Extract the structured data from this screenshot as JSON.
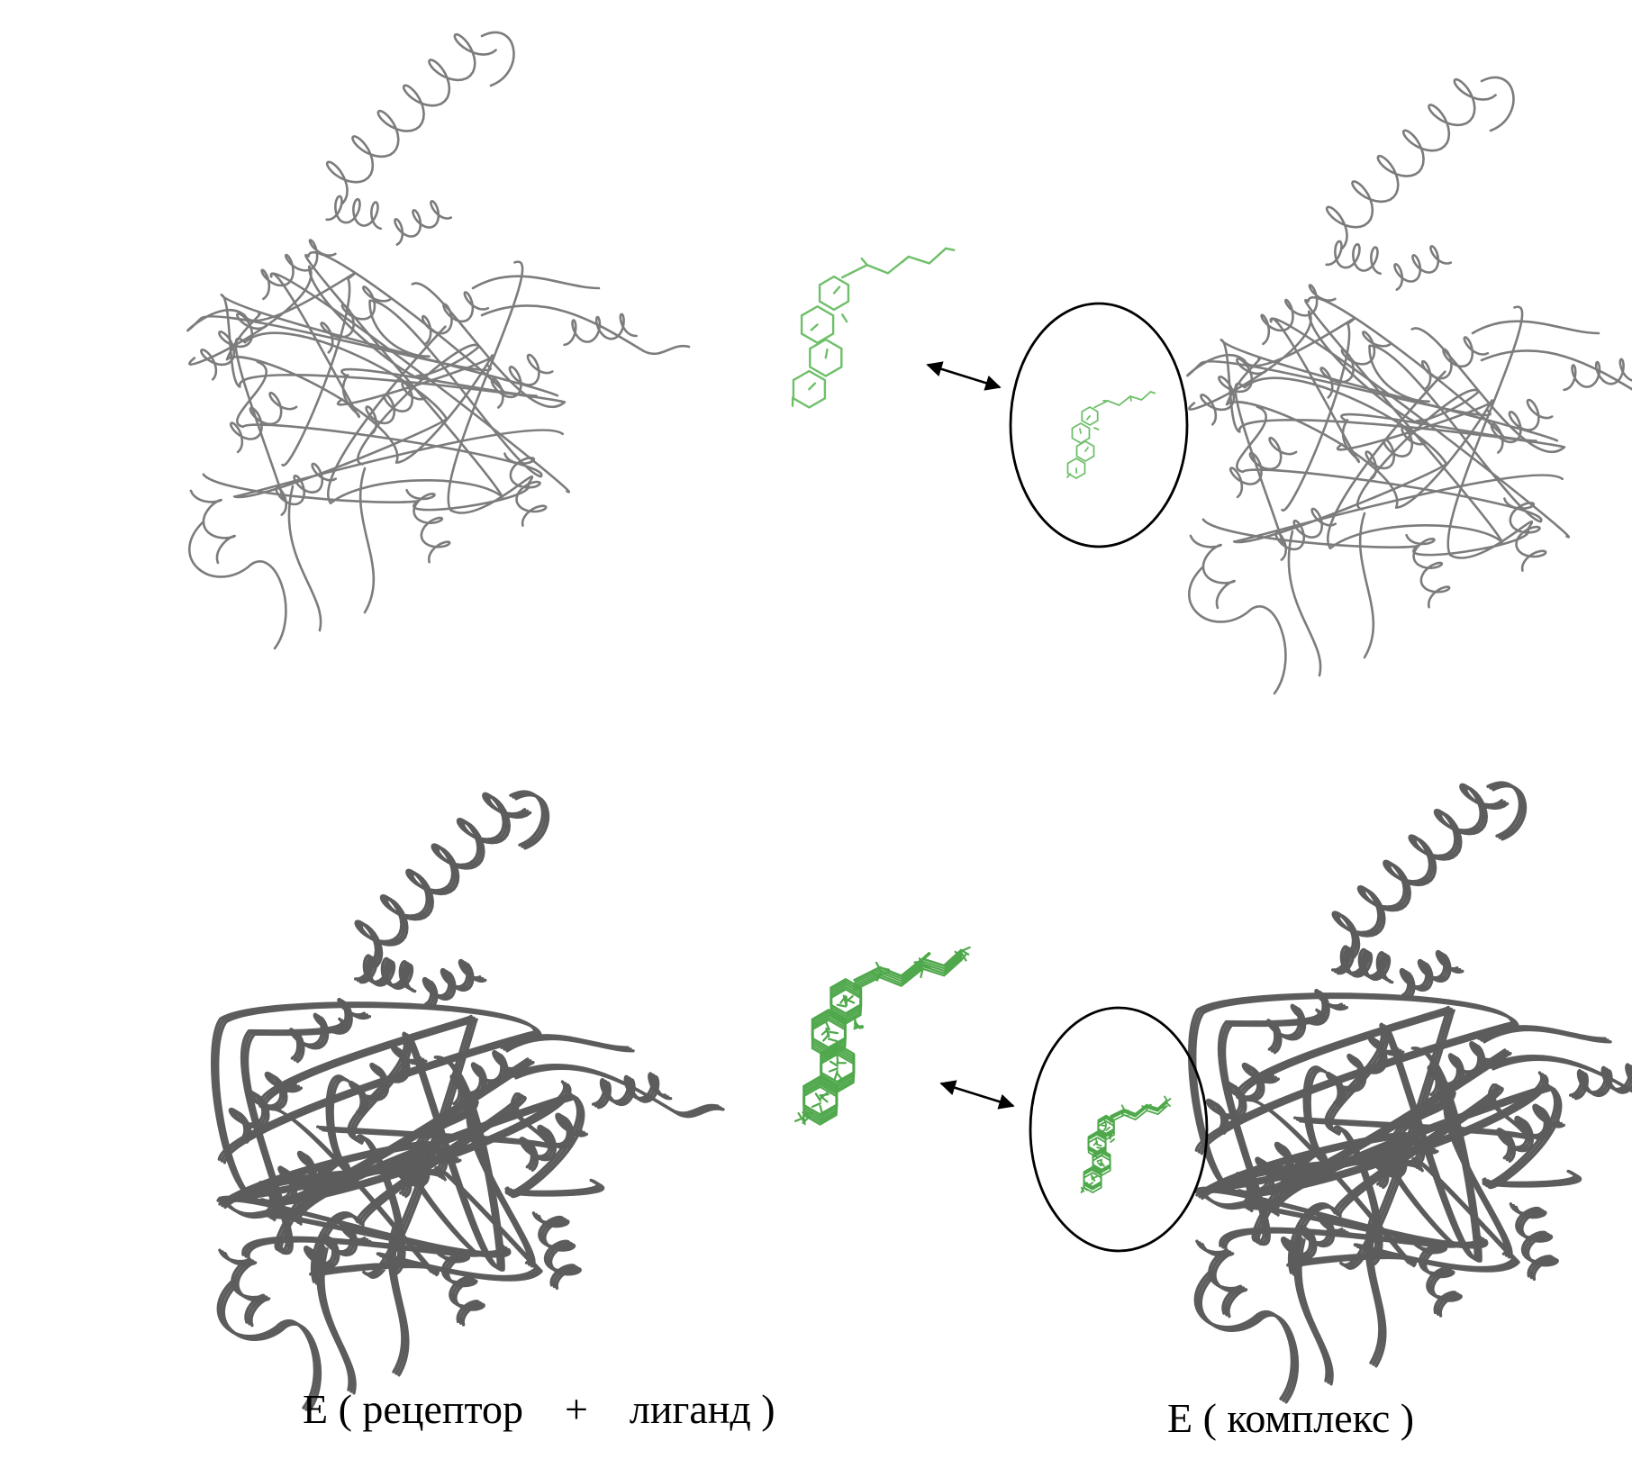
{
  "captions": {
    "left": "E ( рецептор    +    лиганд )",
    "right": "E ( комплекс )"
  },
  "panels": [
    {
      "id": "receptor-top",
      "row": "top",
      "kind": "protein-ribbon",
      "style": "single"
    },
    {
      "id": "ligand-top",
      "row": "top",
      "kind": "ligand",
      "style": "single"
    },
    {
      "id": "complex-top",
      "row": "top",
      "kind": "protein-ribbon-with-ligand",
      "style": "single"
    },
    {
      "id": "receptor-bottom",
      "row": "bottom",
      "kind": "protein-ribbon",
      "style": "ensemble"
    },
    {
      "id": "ligand-bottom",
      "row": "bottom",
      "kind": "ligand",
      "style": "ensemble"
    },
    {
      "id": "complex-bottom",
      "row": "bottom",
      "kind": "protein-ribbon-with-ligand",
      "style": "ensemble"
    }
  ],
  "colors": {
    "ribbon_light": "#8a8a8a",
    "ribbon_dark": "#555555",
    "ligand": "#6fbf6a",
    "ligand_dark": "#3f9a3c",
    "outline": "#000000",
    "background": "#ffffff"
  },
  "icons": {
    "arrow": "double-headed-arrow",
    "ellipse": "binding-site-ellipse"
  }
}
